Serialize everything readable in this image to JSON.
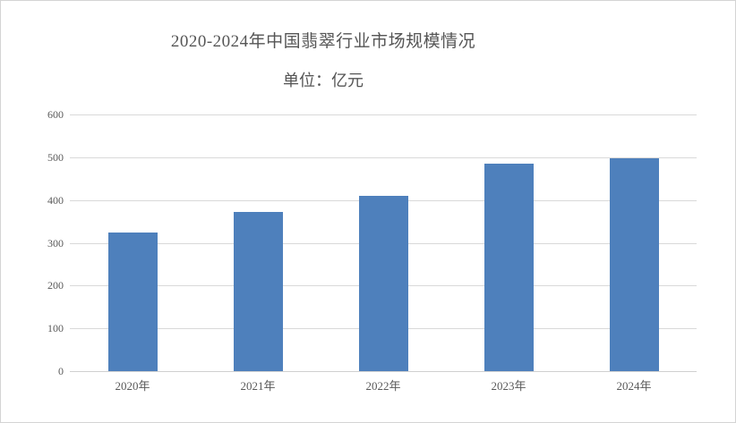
{
  "chart_data": {
    "type": "bar",
    "title": "2020-2024年中国翡翠行业市场规模情况",
    "subtitle": "单位：亿元",
    "categories": [
      "2020年",
      "2021年",
      "2022年",
      "2023年",
      "2024年"
    ],
    "values": [
      325,
      373,
      410,
      485,
      498
    ],
    "xlabel": "",
    "ylabel": "",
    "ylim": [
      0,
      600
    ],
    "ytick_interval": 100,
    "yticks": [
      "0",
      "100",
      "200",
      "300",
      "400",
      "500",
      "600"
    ],
    "grid": true,
    "legend": "none",
    "colors": {
      "bar": "#4e80bc",
      "gridline": "#d9d9d9",
      "text": "#595959",
      "title_text": "#555555",
      "border": "#d4d4d4",
      "background": "#ffffff"
    }
  }
}
